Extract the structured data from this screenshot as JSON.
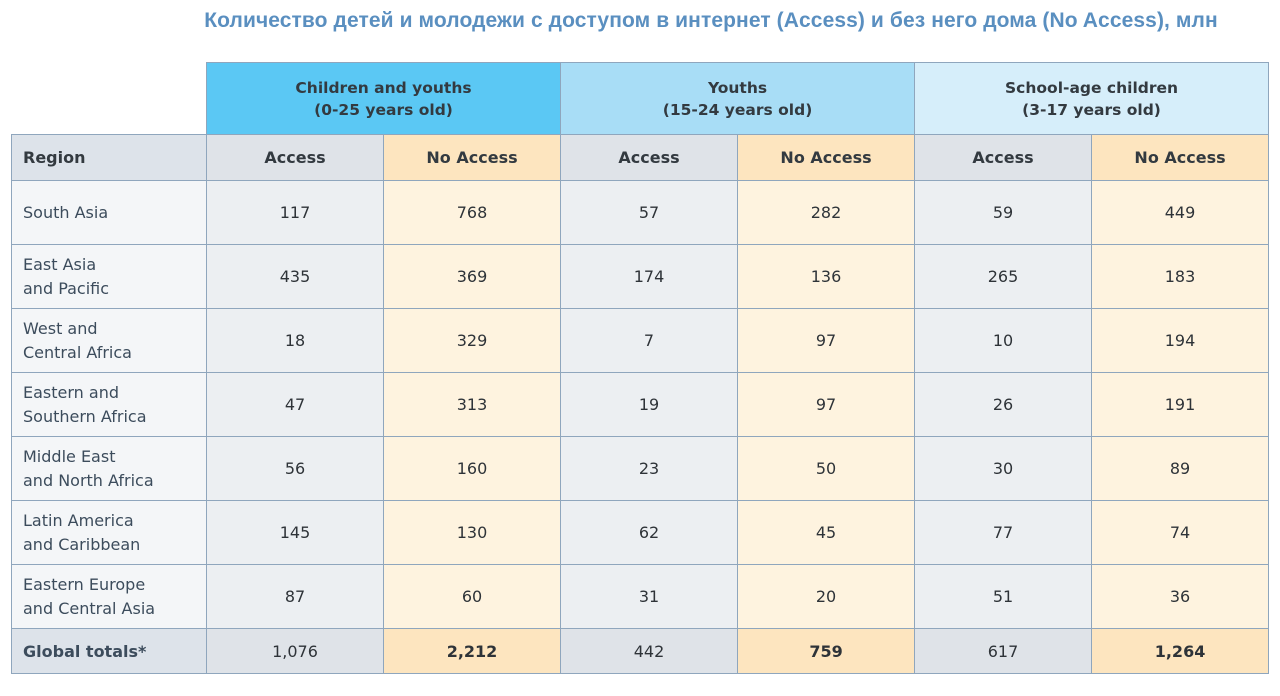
{
  "title": "Количество детей и молодежи с доступом в интернет (Access) и без него дома (No Access), млн",
  "chart_data": {
    "type": "table",
    "groups": [
      {
        "line1": "Children and youths",
        "line2": "(0-25 years old)"
      },
      {
        "line1": "Youths",
        "line2": "(15-24 years old)"
      },
      {
        "line1": "School-age children",
        "line2": "(3-17 years old)"
      }
    ],
    "column_headers": {
      "region": "Region",
      "access": "Access",
      "no_access": "No Access"
    },
    "rows": [
      {
        "region": [
          "South Asia"
        ],
        "values": [
          "117",
          "768",
          "57",
          "282",
          "59",
          "449"
        ]
      },
      {
        "region": [
          "East Asia",
          "and Pacific"
        ],
        "values": [
          "435",
          "369",
          "174",
          "136",
          "265",
          "183"
        ]
      },
      {
        "region": [
          "West and",
          "Central Africa"
        ],
        "values": [
          "18",
          "329",
          "7",
          "97",
          "10",
          "194"
        ]
      },
      {
        "region": [
          "Eastern and",
          "Southern Africa"
        ],
        "values": [
          "47",
          "313",
          "19",
          "97",
          "26",
          "191"
        ]
      },
      {
        "region": [
          "Middle East",
          "and North Africa"
        ],
        "values": [
          "56",
          "160",
          "23",
          "50",
          "30",
          "89"
        ]
      },
      {
        "region": [
          "Latin America",
          "and Caribbean"
        ],
        "values": [
          "145",
          "130",
          "62",
          "45",
          "77",
          "74"
        ]
      },
      {
        "region": [
          "Eastern Europe",
          "and Central Asia"
        ],
        "values": [
          "87",
          "60",
          "31",
          "20",
          "51",
          "36"
        ]
      }
    ],
    "totals": {
      "region": "Global totals*",
      "values": [
        "1,076",
        "2,212",
        "442",
        "759",
        "617",
        "1,264"
      ]
    }
  }
}
